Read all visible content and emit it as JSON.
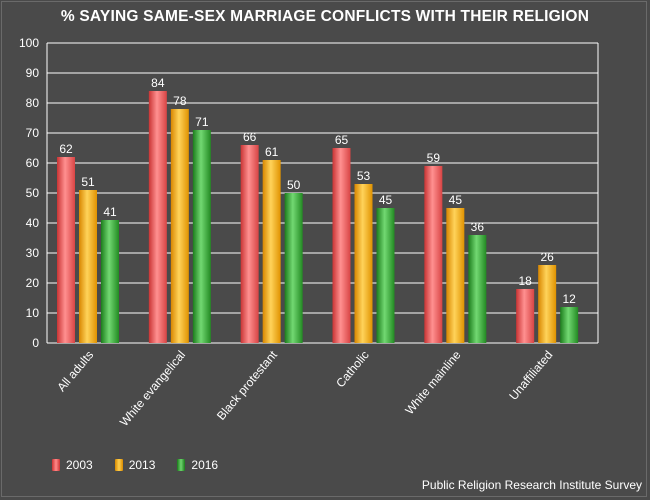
{
  "chart_data": {
    "type": "bar",
    "title": "% SAYING SAME-SEX MARRIAGE CONFLICTS WITH THEIR RELIGION",
    "categories": [
      "All adults",
      "White evangelical",
      "Black protestant",
      "Catholic",
      "White mainline",
      "Unaffiliated"
    ],
    "series": [
      {
        "name": "2003",
        "values": [
          62,
          84,
          66,
          65,
          59,
          18
        ],
        "color": "#f05a5a"
      },
      {
        "name": "2013",
        "values": [
          51,
          78,
          61,
          53,
          45,
          26
        ],
        "color": "#f5a500"
      },
      {
        "name": "2016",
        "values": [
          41,
          71,
          50,
          45,
          36,
          12
        ],
        "color": "#2fa52f"
      }
    ],
    "ylim": [
      0,
      100
    ],
    "yticks": [
      0,
      10,
      20,
      30,
      40,
      50,
      60,
      70,
      80,
      90,
      100
    ],
    "xlabel": "",
    "ylabel": "",
    "grid": true,
    "legend": "bottom-left"
  },
  "source_note": "Public Religion Research Institute Survey"
}
